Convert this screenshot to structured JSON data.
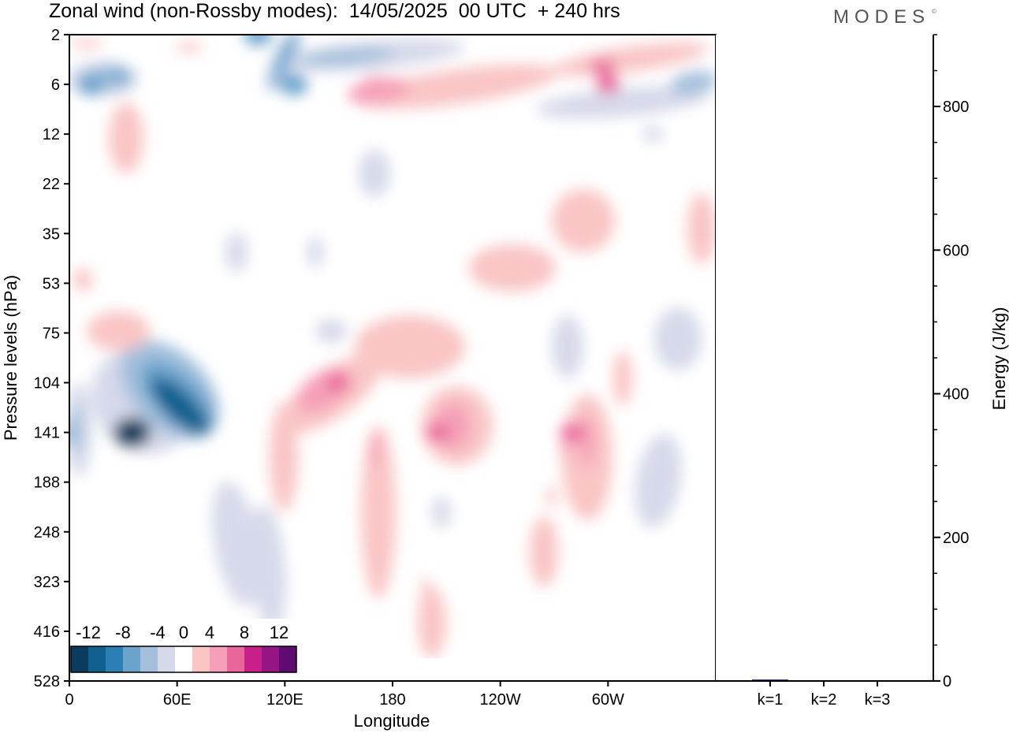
{
  "title": "Zonal wind (non-Rossby modes):  14/05/2025  00 UTC  + 240 hrs",
  "brand": "MODES",
  "brand_mark": "©",
  "chart_data": [
    {
      "type": "heatmap",
      "variable": "Zonal wind (non-Rossby modes)",
      "xlabel": "Longitude",
      "ylabel": "Pressure levels (hPa)",
      "x_ticks": [
        "0",
        "60E",
        "120E",
        "180",
        "120W",
        "60W"
      ],
      "x_tick_values": [
        0,
        60,
        120,
        180,
        240,
        300
      ],
      "xlim": [
        0,
        360
      ],
      "y_ticks": [
        "2",
        "6",
        "12",
        "22",
        "35",
        "53",
        "75",
        "104",
        "141",
        "188",
        "248",
        "323",
        "416",
        "528"
      ],
      "y_scale": "categorical pressure levels, top to bottom",
      "colorbar": {
        "labels": [
          "-12",
          "-8",
          "-4",
          "0",
          "4",
          "8",
          "12"
        ],
        "label_values": [
          -12,
          -8,
          -4,
          0,
          4,
          8,
          12
        ],
        "level_edges": [
          -14,
          -12,
          -10,
          -8,
          -6,
          -4,
          -2,
          2,
          4,
          6,
          8,
          10,
          12,
          14
        ],
        "colors": [
          "#0b3c5d",
          "#11608f",
          "#2b7fb5",
          "#6aa3cc",
          "#a3bfdc",
          "#d6d9ea",
          "#ffffff",
          "#f9c5c5",
          "#f5a0b8",
          "#e9669d",
          "#c81f89",
          "#951585",
          "#5e0b72"
        ]
      },
      "features": [
        {
          "lon": 35,
          "level": "141",
          "value": -13
        },
        {
          "lon": 12,
          "level": "6",
          "value": -8
        },
        {
          "lon": 105,
          "level": "2",
          "value": -8
        },
        {
          "lon": 125,
          "level": "6",
          "value": -8
        },
        {
          "lon": 0,
          "level": "141",
          "value": -6
        },
        {
          "lon": 95,
          "level": "248",
          "value": -4
        },
        {
          "lon": 325,
          "level": "12",
          "value": -4
        },
        {
          "lon": 150,
          "level": "104",
          "value": 6
        },
        {
          "lon": 205,
          "level": "141",
          "value": 6
        },
        {
          "lon": 280,
          "level": "141",
          "value": 6
        },
        {
          "lon": 170,
          "level": "6",
          "value": 5
        },
        {
          "lon": 300,
          "level": "6",
          "value": 6
        }
      ]
    },
    {
      "type": "bar",
      "categories": [
        "k=1",
        "k=2",
        "k=3"
      ],
      "values": [
        2,
        1,
        1
      ],
      "ylabel": "Energy (J/kg)",
      "ylim": [
        0,
        900
      ],
      "y_ticks": [
        0,
        200,
        400,
        600,
        800
      ],
      "y_minor_step": 50,
      "bar_color": "#191970"
    }
  ]
}
